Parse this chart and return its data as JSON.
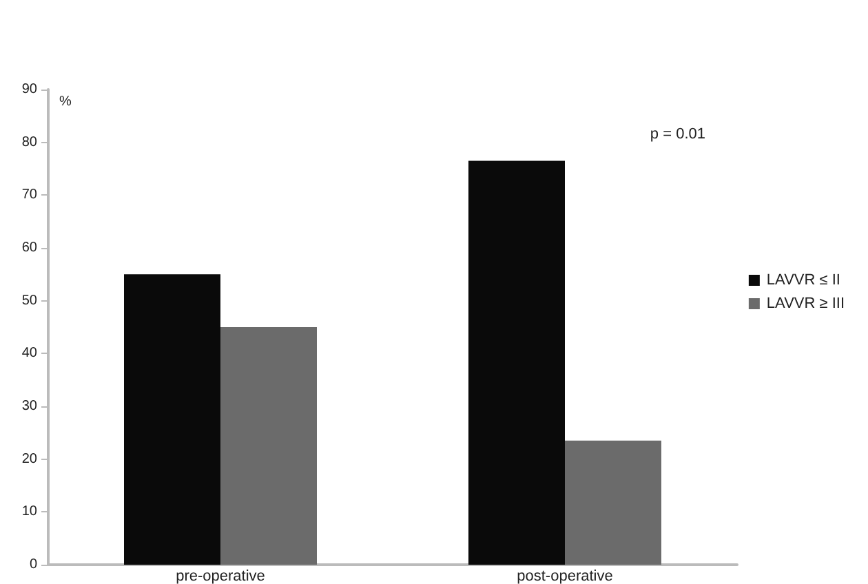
{
  "chart_data": {
    "type": "bar",
    "ylabel": "%",
    "categories": [
      "pre-operative",
      "post-operative"
    ],
    "series": [
      {
        "name": "LAVVR ≤ II",
        "color": "#0a0a0a",
        "values": [
          55,
          76.5
        ]
      },
      {
        "name": "LAVVR ≥ III",
        "color": "#6b6b6b",
        "values": [
          45,
          23.5
        ]
      }
    ],
    "ylim": [
      0,
      90
    ],
    "yticks": [
      0,
      10,
      20,
      30,
      40,
      50,
      60,
      70,
      80,
      90
    ],
    "grid": false,
    "legend": "right",
    "annotations": [
      "p = 0.01"
    ]
  }
}
